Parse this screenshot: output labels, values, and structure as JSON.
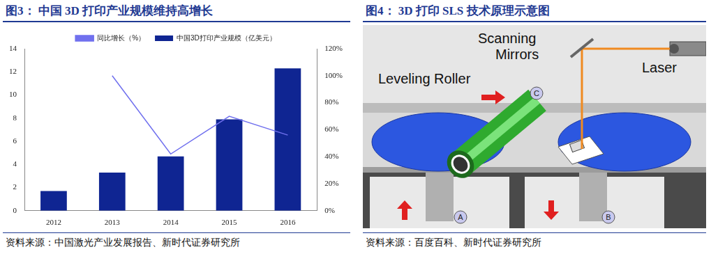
{
  "chart_data": {
    "type": "bar",
    "title": "图3： 中国 3D 打印产业规模维持高增长",
    "source": "资料来源：中国激光产业发展报告、新时代证券研究所",
    "categories": [
      "2012",
      "2013",
      "2014",
      "2015",
      "2016"
    ],
    "series": [
      {
        "name": "中国3D打印产业规模（亿美元）",
        "type": "bar",
        "color": "#0f2592",
        "values": [
          1.7,
          3.3,
          4.7,
          7.9,
          12.3
        ]
      },
      {
        "name": "同比增长（%）",
        "type": "line",
        "color": "#7070ee",
        "axis": "y2",
        "values": [
          null,
          100,
          42,
          70,
          56
        ]
      }
    ],
    "ylim": [
      0,
      14
    ],
    "yticks": [
      0,
      2,
      4,
      6,
      8,
      10,
      12,
      14
    ],
    "y2lim": [
      0,
      120
    ],
    "y2ticks": [
      {
        "value": 0,
        "label": "0%"
      },
      {
        "value": 20,
        "label": "20%"
      },
      {
        "value": 40,
        "label": "40%"
      },
      {
        "value": 60,
        "label": "60%"
      },
      {
        "value": 80,
        "label": "80%"
      },
      {
        "value": 100,
        "label": "100%"
      },
      {
        "value": 120,
        "label": "120%"
      }
    ],
    "grid": false,
    "legend": "top"
  },
  "diagram": {
    "title": "图4： 3D 打印 SLS 技术原理示意图",
    "source": "资料来源：百度百科、新时代证券研究所",
    "labels": {
      "scanning_mirrors": "Scanning Mirrors",
      "leveling_roller": "Leveling Roller",
      "laser": "Laser",
      "piston_a": "A",
      "piston_b": "B",
      "roller": "C"
    }
  }
}
